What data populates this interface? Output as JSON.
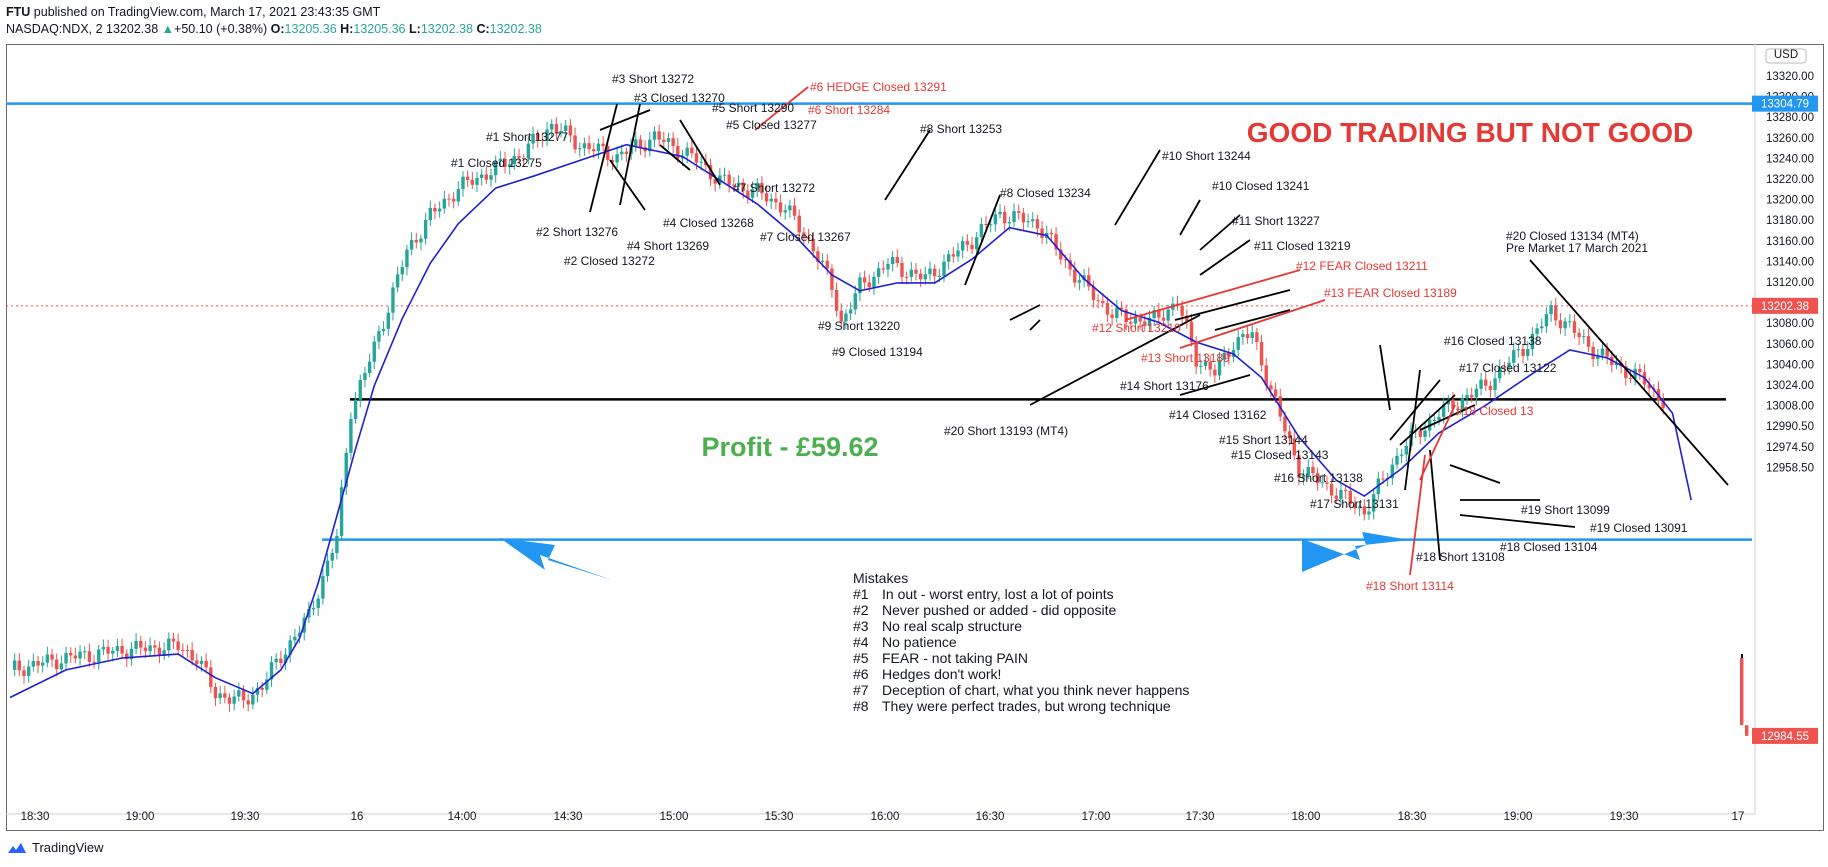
{
  "header": {
    "publisher": "FTU",
    "published_text": "published on TradingView.com, March 17, 2021 23:43:35 GMT",
    "symbol": "NASDAQ:NDX, 2",
    "price": "13202.38",
    "change": "+50.10 (+0.38%)",
    "o_label": "O:",
    "o_value": "13205.36",
    "h_label": "H:",
    "h_value": "13205.36",
    "l_label": "L:",
    "l_value": "13202.38",
    "c_label": "C:",
    "c_value": "13202.38"
  },
  "footer": {
    "brand": "TradingView",
    "icon": "tradingview-logo-icon"
  },
  "colors": {
    "up": "#26a69a",
    "down": "#ef5350",
    "ma": "#1f1fd6",
    "hline_blue": "#2196f3",
    "red_text": "#e53935",
    "profit": "#4caf50"
  },
  "chart_data": {
    "type": "candlestick",
    "currency": "USD",
    "ylim": [
      12945,
      13335
    ],
    "y_ticks": [
      "13320.00",
      "13300.00",
      "13280.00",
      "13260.00",
      "13240.00",
      "13220.00",
      "13200.00",
      "13180.00",
      "13160.00",
      "13140.00",
      "13120.00",
      "13100.00",
      "13080.00",
      "13060.00",
      "13040.00",
      "13024.00",
      "13008.00",
      "12990.50",
      "12974.50",
      "12958.50"
    ],
    "x_ticks": [
      "18:30",
      "19:00",
      "19:30",
      "16",
      "14:00",
      "14:30",
      "15:00",
      "15:30",
      "16:00",
      "16:30",
      "17:00",
      "17:30",
      "18:00",
      "18:30",
      "19:00",
      "19:30",
      "17"
    ],
    "price_badges": [
      {
        "label": "13304.79",
        "value": 13304.79,
        "color": "#2196f3"
      },
      {
        "label": "13202.38",
        "value": 13202.38,
        "color": "#ef5350"
      },
      {
        "label": "12984.55",
        "value": 12984.55,
        "color": "#ef5350"
      }
    ],
    "horizontal_lines": [
      {
        "value": 13304.79,
        "color": "#2196f3"
      },
      {
        "value": 13155,
        "color": "#000000"
      },
      {
        "value": 13084,
        "color": "#2196f3"
      },
      {
        "value": 13202.38,
        "color": "#ef5350",
        "style": "dotted"
      }
    ],
    "title": "GOOD TRADING BUT NOT GOOD",
    "profit_text": "Profit - £59.62",
    "mistakes": {
      "heading": "Mistakes",
      "items": [
        {
          "num": "#1",
          "text": "In out - worst entry, lost a lot of points"
        },
        {
          "num": "#2",
          "text": "Never pushed or added - did opposite"
        },
        {
          "num": "#3",
          "text": "No real scalp structure"
        },
        {
          "num": "#4",
          "text": "No patience"
        },
        {
          "num": "#5",
          "text": "FEAR - not taking PAIN"
        },
        {
          "num": "#6",
          "text": "Hedges don't work!"
        },
        {
          "num": "#7",
          "text": "Deception of chart, what you think never happens"
        },
        {
          "num": "#8",
          "text": "They were perfect trades, but wrong technique"
        }
      ]
    },
    "annotations": [
      {
        "text": "#3 Short 13272",
        "red": false
      },
      {
        "text": "#3 Closed 13270",
        "red": false
      },
      {
        "text": "#6 HEDGE Closed 13291",
        "red": true
      },
      {
        "text": "#5 Short 13290",
        "red": false
      },
      {
        "text": "#6 Short 13284",
        "red": true
      },
      {
        "text": "#1 Short 13277",
        "red": false
      },
      {
        "text": "#5 Closed 13277",
        "red": false
      },
      {
        "text": "#8 Short 13253",
        "red": false
      },
      {
        "text": "#1 Closed 13275",
        "red": false
      },
      {
        "text": "#10 Short 13244",
        "red": false
      },
      {
        "text": "#7 Short 13272",
        "red": false
      },
      {
        "text": "#10 Closed 13241",
        "red": false
      },
      {
        "text": "#8 Closed 13234",
        "red": false
      },
      {
        "text": "#4 Closed 13268",
        "red": false
      },
      {
        "text": "#11 Short 13227",
        "red": false
      },
      {
        "text": "#2 Short 13276",
        "red": false
      },
      {
        "text": "#7 Closed 13267",
        "red": false
      },
      {
        "text": "#20 Closed 13134 (MT4)",
        "red": false
      },
      {
        "text": "#4 Short 13269",
        "red": false
      },
      {
        "text": "#11 Closed 13219",
        "red": false
      },
      {
        "text": "Pre Market 17 March 2021",
        "red": false
      },
      {
        "text": "#2 Closed 13272",
        "red": false
      },
      {
        "text": "#12 FEAR Closed 13211",
        "red": true
      },
      {
        "text": "#13 FEAR Closed 13189",
        "red": true
      },
      {
        "text": "#9 Short 13220",
        "red": false
      },
      {
        "text": "#12 Short 13210",
        "red": true
      },
      {
        "text": "#16 Closed 13138",
        "red": false
      },
      {
        "text": "#9 Closed 13194",
        "red": false
      },
      {
        "text": "#13 Short 13189",
        "red": true
      },
      {
        "text": "#17 Closed 13122",
        "red": false
      },
      {
        "text": "#14 Short 13176",
        "red": false
      },
      {
        "text": "#14 Closed 13162",
        "red": false
      },
      {
        "text": "#18 Closed 13",
        "red": true
      },
      {
        "text": "#20 Short 13193 (MT4)",
        "red": false
      },
      {
        "text": "#15 Short 13144",
        "red": false
      },
      {
        "text": "#15 Closed 13143",
        "red": false
      },
      {
        "text": "#16 Short 13138",
        "red": false
      },
      {
        "text": "#17 Short 13131",
        "red": false
      },
      {
        "text": "#19 Short 13099",
        "red": false
      },
      {
        "text": "#19 Closed 13091",
        "red": false
      },
      {
        "text": "#18 Closed 13104",
        "red": false
      },
      {
        "text": "#18 Short 13108",
        "red": false
      },
      {
        "text": "#18 Short 13114",
        "red": true
      }
    ],
    "price_path_estimate": [
      [
        0,
        13018
      ],
      [
        12,
        13024
      ],
      [
        24,
        13028
      ],
      [
        36,
        13030
      ],
      [
        40,
        13024
      ],
      [
        44,
        13006
      ],
      [
        50,
        13002
      ],
      [
        54,
        13010
      ],
      [
        58,
        13025
      ],
      [
        64,
        13045
      ],
      [
        70,
        13085
      ],
      [
        73,
        13150
      ],
      [
        76,
        13168
      ],
      [
        80,
        13195
      ],
      [
        85,
        13230
      ],
      [
        90,
        13248
      ],
      [
        96,
        13262
      ],
      [
        104,
        13272
      ],
      [
        110,
        13280
      ],
      [
        116,
        13294
      ],
      [
        122,
        13284
      ],
      [
        130,
        13278
      ],
      [
        138,
        13288
      ],
      [
        146,
        13278
      ],
      [
        152,
        13266
      ],
      [
        160,
        13260
      ],
      [
        166,
        13252
      ],
      [
        172,
        13232
      ],
      [
        176,
        13212
      ],
      [
        178,
        13194
      ],
      [
        182,
        13212
      ],
      [
        188,
        13224
      ],
      [
        196,
        13216
      ],
      [
        206,
        13236
      ],
      [
        212,
        13249
      ],
      [
        220,
        13244
      ],
      [
        228,
        13218
      ],
      [
        236,
        13198
      ],
      [
        244,
        13194
      ],
      [
        250,
        13204
      ],
      [
        254,
        13176
      ],
      [
        258,
        13168
      ],
      [
        262,
        13184
      ],
      [
        266,
        13188
      ],
      [
        272,
        13146
      ],
      [
        276,
        13120
      ],
      [
        284,
        13108
      ],
      [
        290,
        13098
      ],
      [
        298,
        13130
      ],
      [
        306,
        13148
      ],
      [
        316,
        13162
      ],
      [
        326,
        13186
      ],
      [
        330,
        13200
      ],
      [
        340,
        13178
      ],
      [
        350,
        13164
      ],
      [
        354,
        13154
      ]
    ],
    "ma_path_estimate": [
      [
        0,
        13004
      ],
      [
        12,
        13018
      ],
      [
        24,
        13024
      ],
      [
        36,
        13026
      ],
      [
        44,
        13014
      ],
      [
        52,
        13006
      ],
      [
        58,
        13018
      ],
      [
        62,
        13034
      ],
      [
        66,
        13062
      ],
      [
        70,
        13096
      ],
      [
        74,
        13130
      ],
      [
        78,
        13162
      ],
      [
        84,
        13196
      ],
      [
        90,
        13224
      ],
      [
        96,
        13244
      ],
      [
        104,
        13262
      ],
      [
        112,
        13268
      ],
      [
        122,
        13276
      ],
      [
        132,
        13284
      ],
      [
        144,
        13278
      ],
      [
        152,
        13266
      ],
      [
        160,
        13254
      ],
      [
        168,
        13238
      ],
      [
        176,
        13218
      ],
      [
        182,
        13210
      ],
      [
        190,
        13214
      ],
      [
        198,
        13214
      ],
      [
        206,
        13226
      ],
      [
        214,
        13242
      ],
      [
        222,
        13238
      ],
      [
        230,
        13216
      ],
      [
        238,
        13200
      ],
      [
        246,
        13194
      ],
      [
        254,
        13184
      ],
      [
        262,
        13178
      ],
      [
        268,
        13166
      ],
      [
        276,
        13136
      ],
      [
        284,
        13114
      ],
      [
        290,
        13106
      ],
      [
        298,
        13120
      ],
      [
        306,
        13138
      ],
      [
        316,
        13152
      ],
      [
        326,
        13168
      ],
      [
        334,
        13180
      ],
      [
        342,
        13176
      ],
      [
        350,
        13166
      ],
      [
        356,
        13148
      ],
      [
        360,
        13104
      ]
    ]
  }
}
